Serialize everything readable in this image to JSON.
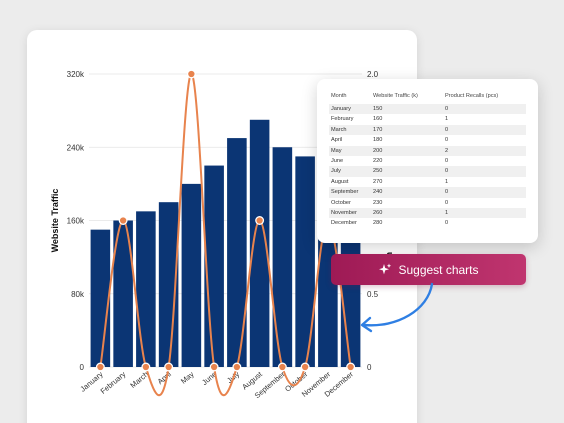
{
  "suggest_button": {
    "label": "Suggest charts",
    "icon": "sparkle-icon"
  },
  "table": {
    "headers": [
      "Month",
      "Website Traffic (k)",
      "Product Recalls (pcs)"
    ],
    "rows": [
      [
        "January",
        "150",
        "0"
      ],
      [
        "February",
        "160",
        "1"
      ],
      [
        "March",
        "170",
        "0"
      ],
      [
        "April",
        "180",
        "0"
      ],
      [
        "May",
        "200",
        "2"
      ],
      [
        "June",
        "220",
        "0"
      ],
      [
        "July",
        "250",
        "0"
      ],
      [
        "August",
        "270",
        "1"
      ],
      [
        "September",
        "240",
        "0"
      ],
      [
        "October",
        "230",
        "0"
      ],
      [
        "November",
        "260",
        "1"
      ],
      [
        "December",
        "280",
        "0"
      ]
    ]
  },
  "chart_data": {
    "type": "bar",
    "categories": [
      "January",
      "February",
      "March",
      "April",
      "May",
      "June",
      "July",
      "August",
      "September",
      "October",
      "November",
      "December"
    ],
    "series": [
      {
        "type": "bar",
        "values": [
          150,
          160,
          170,
          180,
          200,
          220,
          250,
          270,
          240,
          230,
          260,
          280
        ],
        "color": "#0b3574",
        "axis": "left"
      },
      {
        "type": "line",
        "values": [
          0,
          1,
          0,
          0,
          2,
          0,
          0,
          1,
          0,
          0,
          1,
          0
        ],
        "color": "#e8834d",
        "axis": "right"
      }
    ],
    "ylabel": "Website Traffic",
    "y2label_visible": "u",
    "yticks": [
      "0",
      "80k",
      "160k",
      "240k",
      "320k"
    ],
    "y2ticks": [
      "0",
      "0.5",
      "2.0"
    ],
    "ylim": [
      0,
      320
    ],
    "y2lim": [
      0,
      2
    ],
    "grid": true
  }
}
